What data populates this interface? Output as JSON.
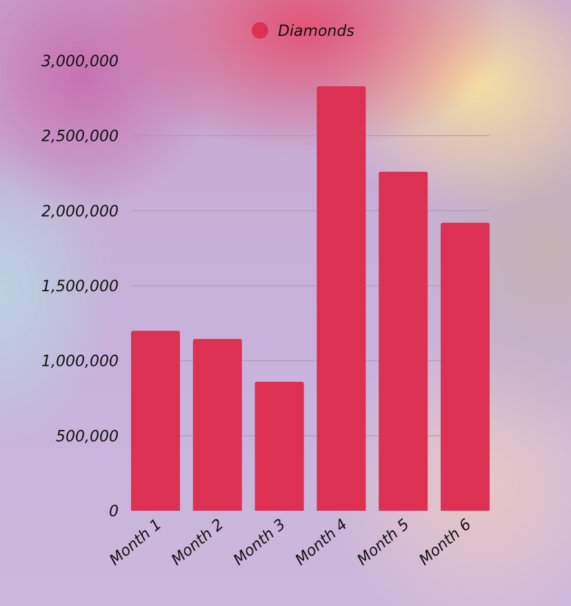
{
  "chart_data": {
    "type": "bar",
    "categories": [
      "Month 1",
      "Month 2",
      "Month 3",
      "Month 4",
      "Month 5",
      "Month 6"
    ],
    "series": [
      {
        "name": "Diamonds",
        "color": "#dc3152",
        "values": [
          1200000,
          1145000,
          860000,
          2830000,
          2260000,
          1920000
        ]
      }
    ],
    "ylim": [
      0,
      3000000
    ],
    "yticks": [
      0,
      500000,
      1000000,
      1500000,
      2000000,
      2500000,
      3000000
    ],
    "ytick_labels": [
      "0",
      "500,000",
      "1,000,000",
      "1,500,000",
      "2,000,000",
      "2,500,000",
      "3,000,000"
    ],
    "grid": true,
    "grid_color": "#a79aae",
    "legend_position": "top-center",
    "title": "",
    "xlabel": "",
    "ylabel": ""
  }
}
